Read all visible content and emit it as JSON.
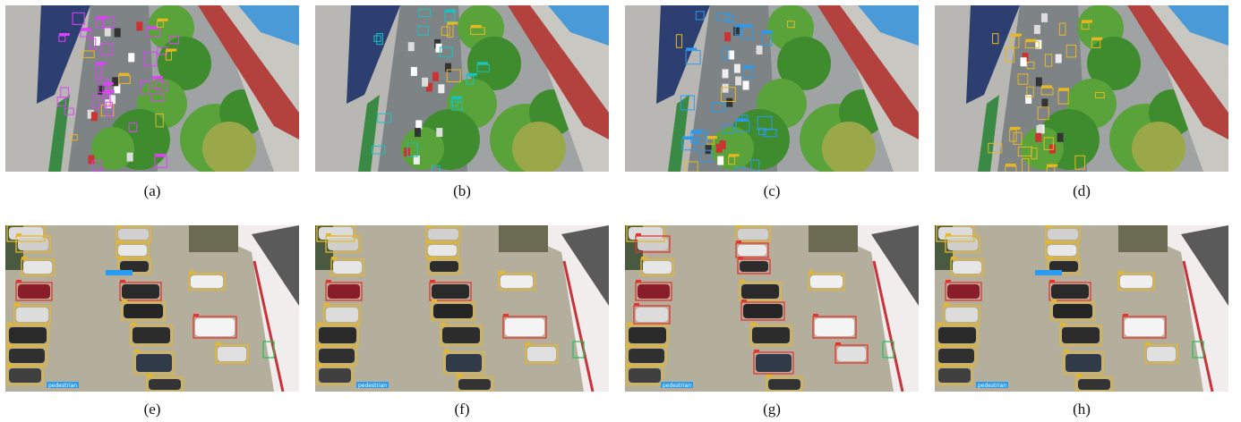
{
  "figure": {
    "panels": [
      {
        "id": "a",
        "caption": "(a)",
        "scene": "street"
      },
      {
        "id": "b",
        "caption": "(b)",
        "scene": "street"
      },
      {
        "id": "c",
        "caption": "(c)",
        "scene": "street"
      },
      {
        "id": "d",
        "caption": "(d)",
        "scene": "street"
      },
      {
        "id": "e",
        "caption": "(e)",
        "scene": "parking"
      },
      {
        "id": "f",
        "caption": "(f)",
        "scene": "parking"
      },
      {
        "id": "g",
        "caption": "(g)",
        "scene": "parking"
      },
      {
        "id": "h",
        "caption": "(h)",
        "scene": "parking"
      }
    ],
    "detection_labels": [
      "pedestrian"
    ],
    "colors": {
      "car_box": "#e8b820",
      "van_box": "#e8322e",
      "pedestrian_box": "#2a9bf0",
      "person_box": "#e040fb",
      "green_box": "#22c55e",
      "cyan_box": "#17c3c3"
    }
  }
}
